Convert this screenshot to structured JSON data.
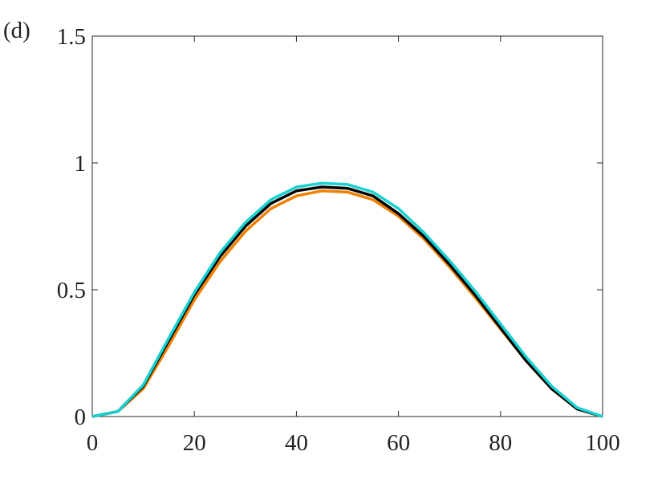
{
  "chart_data": {
    "type": "line",
    "label": "(d)",
    "x": [
      0,
      5,
      10,
      15,
      20,
      25,
      30,
      35,
      40,
      45,
      50,
      55,
      60,
      65,
      70,
      75,
      80,
      85,
      90,
      95,
      100
    ],
    "series": [
      {
        "color": "#f08000",
        "values": [
          0,
          0.02,
          0.11,
          0.28,
          0.46,
          0.61,
          0.73,
          0.82,
          0.87,
          0.89,
          0.885,
          0.855,
          0.79,
          0.7,
          0.59,
          0.47,
          0.345,
          0.22,
          0.11,
          0.03,
          0
        ]
      },
      {
        "color": "#000000",
        "values": [
          0,
          0.02,
          0.12,
          0.3,
          0.48,
          0.63,
          0.75,
          0.84,
          0.89,
          0.905,
          0.9,
          0.87,
          0.8,
          0.71,
          0.6,
          0.48,
          0.35,
          0.22,
          0.11,
          0.03,
          0
        ]
      },
      {
        "color": "#1ad1d1",
        "values": [
          0,
          0.02,
          0.125,
          0.31,
          0.49,
          0.645,
          0.765,
          0.855,
          0.905,
          0.92,
          0.915,
          0.885,
          0.82,
          0.725,
          0.615,
          0.495,
          0.365,
          0.235,
          0.12,
          0.035,
          0
        ]
      }
    ],
    "xlim": [
      0,
      100
    ],
    "xticks": [
      0,
      20,
      40,
      60,
      80,
      100
    ],
    "ylim": [
      0,
      1.5
    ],
    "yticks": [
      0,
      0.5,
      1,
      1.5
    ],
    "grid": false
  }
}
